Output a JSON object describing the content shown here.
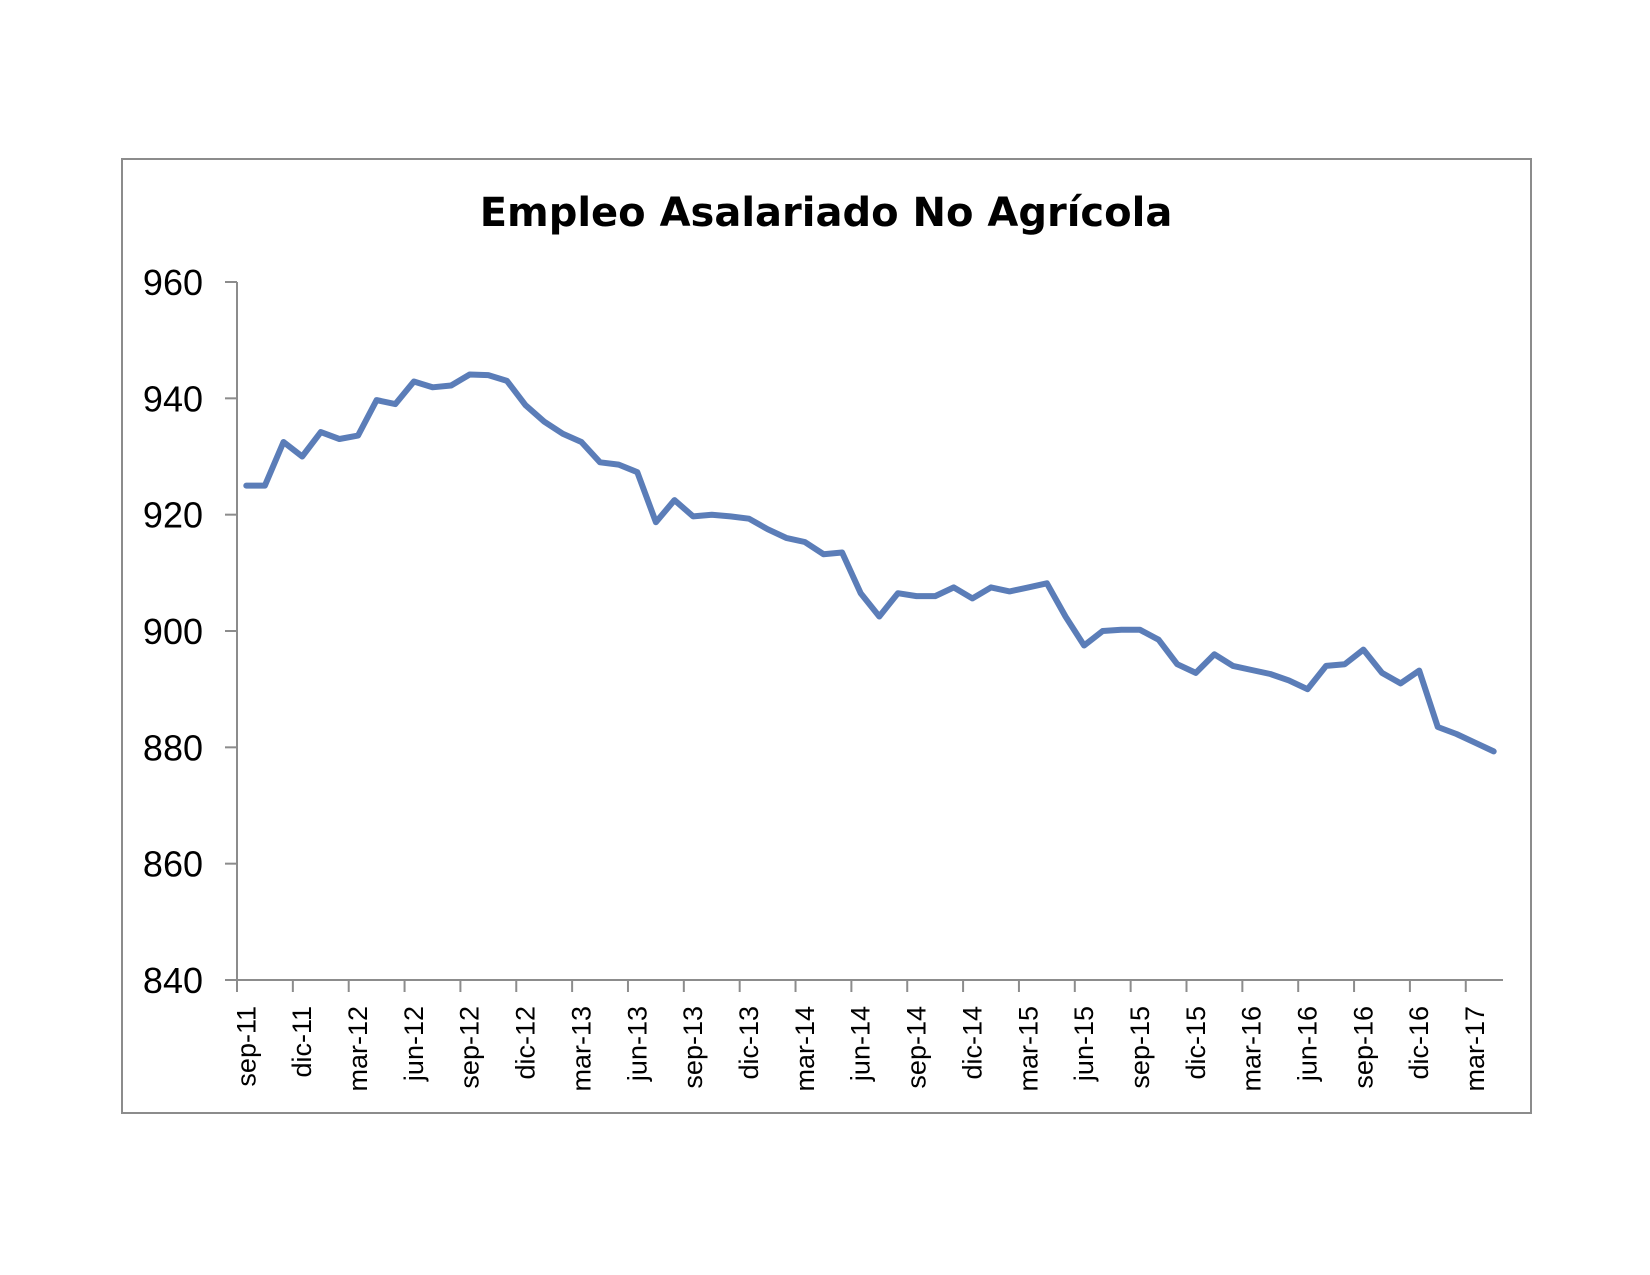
{
  "chart_data": {
    "type": "line",
    "title": "Empleo Asalariado No Agrícola",
    "xlabel": "",
    "ylabel": "",
    "ylim": [
      840,
      960
    ],
    "yticks": [
      840,
      860,
      880,
      900,
      920,
      940,
      960
    ],
    "grid": false,
    "legend": "none",
    "line_color": "#5B7DB8",
    "x_tick_labels": [
      "sep-11",
      "dic-11",
      "mar-12",
      "jun-12",
      "sep-12",
      "dic-12",
      "mar-13",
      "jun-13",
      "sep-13",
      "dic-13",
      "mar-14",
      "jun-14",
      "sep-14",
      "dic-14",
      "mar-15",
      "jun-15",
      "sep-15",
      "dic-15",
      "mar-16",
      "jun-16",
      "sep-16",
      "dic-16",
      "mar-17"
    ],
    "x": [
      "sep-11",
      "oct-11",
      "nov-11",
      "dic-11",
      "ene-12",
      "feb-12",
      "mar-12",
      "abr-12",
      "may-12",
      "jun-12",
      "jul-12",
      "ago-12",
      "sep-12",
      "oct-12",
      "nov-12",
      "dic-12",
      "ene-13",
      "feb-13",
      "mar-13",
      "abr-13",
      "may-13",
      "jun-13",
      "jul-13",
      "ago-13",
      "sep-13",
      "oct-13",
      "nov-13",
      "dic-13",
      "ene-14",
      "feb-14",
      "mar-14",
      "abr-14",
      "may-14",
      "jun-14",
      "jul-14",
      "ago-14",
      "sep-14",
      "oct-14",
      "nov-14",
      "dic-14",
      "ene-15",
      "feb-15",
      "mar-15",
      "abr-15",
      "may-15",
      "jun-15",
      "jul-15",
      "ago-15",
      "sep-15",
      "oct-15",
      "nov-15",
      "dic-15",
      "ene-16",
      "feb-16",
      "mar-16",
      "abr-16",
      "may-16",
      "jun-16",
      "jul-16",
      "ago-16",
      "sep-16",
      "oct-16",
      "nov-16",
      "dic-16",
      "ene-17",
      "feb-17",
      "mar-17",
      "abr-17"
    ],
    "series": [
      {
        "values": [
          925,
          925,
          932.5,
          930,
          934.2,
          933,
          933.6,
          939.7,
          939,
          942.9,
          941.9,
          942.2,
          944.1,
          944,
          943,
          938.8,
          936,
          933.9,
          932.5,
          929,
          928.6,
          927.3,
          918.7,
          922.5,
          919.7,
          920,
          919.7,
          919.3,
          917.5,
          916,
          915.3,
          913.2,
          913.5,
          906.5,
          902.5,
          906.5,
          906,
          906,
          907.5,
          905.6,
          907.5,
          906.8,
          907.5,
          908.2,
          902.5,
          897.5,
          900,
          900.2,
          900.2,
          898.5,
          894.3,
          892.8,
          896,
          894,
          893.3,
          892.6,
          891.5,
          890,
          894,
          894.3,
          896.8,
          892.8,
          891,
          893.2,
          883.5,
          882.3,
          880.8,
          879.3
        ]
      }
    ]
  }
}
